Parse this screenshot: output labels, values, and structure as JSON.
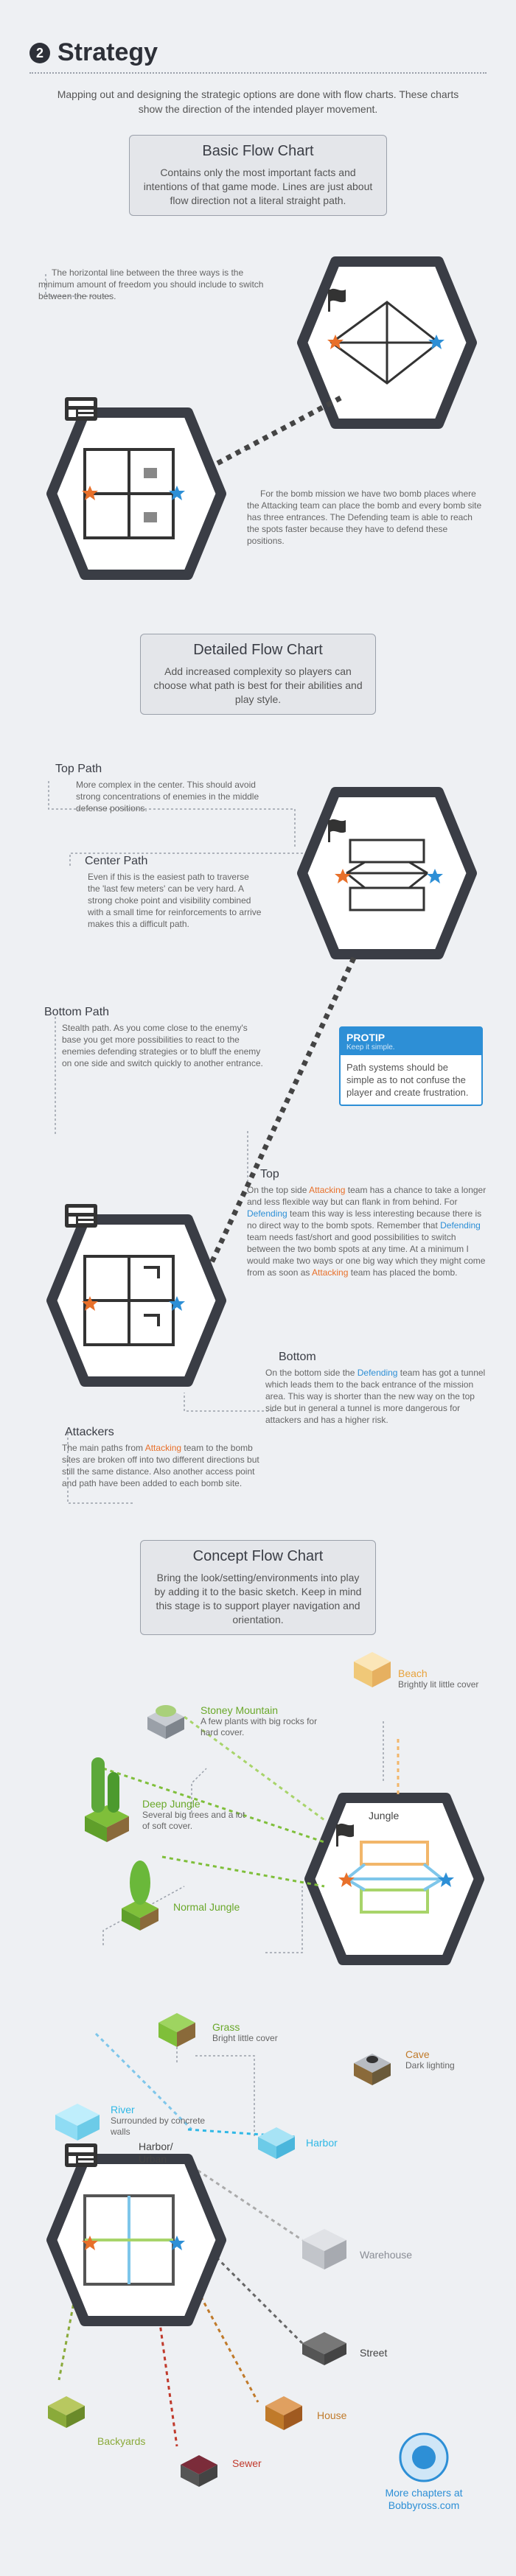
{
  "header": {
    "number": "2",
    "title": "Strategy"
  },
  "intro": "Mapping out and designing the strategic options are done with flow charts. These charts show the direction of the intended player movement.",
  "basic": {
    "title": "Basic Flow Chart",
    "desc": "Contains only the most important facts and intentions of that game mode. Lines are just about flow direction not a literal straight path.",
    "note1": "The horizontal line between the three ways is the minimum amount of freedom you should include to switch between the routes.",
    "note2": "For the bomb mission we have two bomb places where the Attacking team can place the bomb and every bomb site has three entrances. The Defending team is able to reach the spots faster because they have to defend these positions."
  },
  "detailed": {
    "title": "Detailed Flow Chart",
    "desc": "Add increased complexity so players can choose what path is best for their abilities and play style.",
    "top_path": {
      "head": "Top Path",
      "text": "More complex in the center. This should avoid strong concentrations of enemies in the middle defense positions."
    },
    "center_path": {
      "head": "Center Path",
      "text": "Even if this is the easiest path to traverse the 'last few meters' can be very hard. A strong choke point and visibility combined with a small time for reinforcements to arrive makes this a difficult path."
    },
    "bottom_path": {
      "head": "Bottom Path",
      "text": "Stealth path. As you come close to the enemy's base you get more possibilities to react to the enemies defending strategies or to bluff the enemy on one side and switch quickly to another entrance."
    },
    "protip": {
      "head": "PROTIP",
      "sub": "Keep it simple.",
      "text": "Path systems should be simple as to not confuse the player and create frustration."
    },
    "top": {
      "head": "Top",
      "p1": "On the top side ",
      "attacking": "Attacking",
      "p2": " team has a chance to take a longer and less flexible way but can flank in from behind. For ",
      "defending": "Defending",
      "p3": " team this way is less interesting because there is no direct way to the bomb spots. Remember that ",
      "p4": " team needs fast/short and good possibilities to switch between the two bomb spots at any time. At a minimum I would make two ways or one big way which they might come from as soon as ",
      "p5": " team has placed the bomb."
    },
    "bottom": {
      "head": "Bottom",
      "p1": "On the bottom side the ",
      "defending": "Defending",
      "p2": " team has got a tunnel which leads them to the back entrance of the mission area. This way is shorter than the new way on the top side but in general a tunnel is more dangerous for attackers and has a higher risk."
    },
    "attackers": {
      "head": "Attackers",
      "p1": "The main paths from ",
      "attacking": "Attacking",
      "p2": " team to the bomb sites are broken off into two different directions but still the same distance. Also another access point and path have been added to each bomb site."
    }
  },
  "concept": {
    "title": "Concept Flow Chart",
    "desc": "Bring the look/setting/environments into play by adding it to the basic sketch. Keep in mind this stage is to support player navigation and orientation.",
    "beach": {
      "name": "Beach",
      "desc": "Brightly lit little cover"
    },
    "stoney": {
      "name": "Stoney Mountain",
      "desc": "A few plants with big rocks for hard cover."
    },
    "deep_jungle": {
      "name": "Deep Jungle",
      "desc": "Several big trees and a lot of soft cover."
    },
    "jungle": "Jungle",
    "normal_jungle": "Normal Jungle",
    "grass": {
      "name": "Grass",
      "desc": "Bright little cover"
    },
    "cave": {
      "name": "Cave",
      "desc": "Dark lighting"
    },
    "river": {
      "name": "River",
      "desc": "Surrounded by concrete walls"
    },
    "harbor_urban": "Harbor/ Urban",
    "harbor": "Harbor",
    "warehouse": "Warehouse",
    "street": "Street",
    "house": "House",
    "backyards": "Backyards",
    "sewer": "Sewer",
    "footer": "More chapters at Bobbyross.com"
  },
  "colors": {
    "attack": "#e8702a",
    "defend": "#2d8fd6",
    "hex_fill": "#ffffff",
    "hex_border": "#3a3d45"
  }
}
